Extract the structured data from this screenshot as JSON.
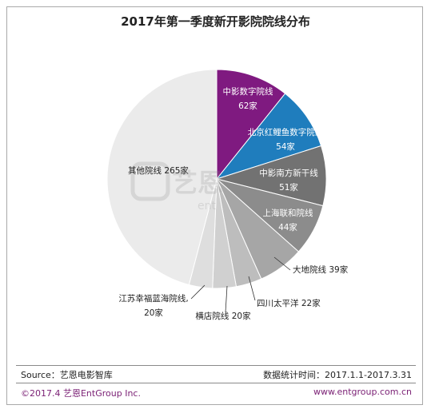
{
  "chart_data": {
    "type": "pie",
    "title": "2017年第一季度新开影院院线分布",
    "slices": [
      {
        "label": "中影数字院线",
        "value": 62,
        "value_text": "62家",
        "color": "#7f1a80"
      },
      {
        "label": "北京红鲤鱼数字院线",
        "value": 54,
        "value_text": "54家",
        "color": "#1f7dbd"
      },
      {
        "label": "中影南方新干线",
        "value": 51,
        "value_text": "51家",
        "color": "#727272"
      },
      {
        "label": "上海联和院线",
        "value": 44,
        "value_text": "44家",
        "color": "#8c8c8c"
      },
      {
        "label": "大地院线",
        "value": 39,
        "value_text": "39家",
        "color": "#a6a6a6"
      },
      {
        "label": "四川太平洋",
        "value": 22,
        "value_text": "22家",
        "color": "#bdbdbd"
      },
      {
        "label": "横店院线",
        "value": 20,
        "value_text": "20家",
        "color": "#d0d0d0"
      },
      {
        "label": "江苏幸福蓝海院线,",
        "value": 20,
        "value_text": "20家",
        "color": "#dedede"
      },
      {
        "label": "其他院线",
        "value": 265,
        "value_text": "265家",
        "color": "#ebebeb"
      }
    ]
  },
  "footer": {
    "source": "Source：艺恩电影智库",
    "stat_time": "数据统计时间：2017.1.1-2017.3.31",
    "copyright": "©2017.4 艺恩EntGroup Inc.",
    "website": "www.entgroup.com.cn"
  },
  "watermark": {
    "logo_text": "艺恩",
    "sub_text": "ent"
  },
  "colors": {
    "footer_accent": "#7a1f74"
  }
}
